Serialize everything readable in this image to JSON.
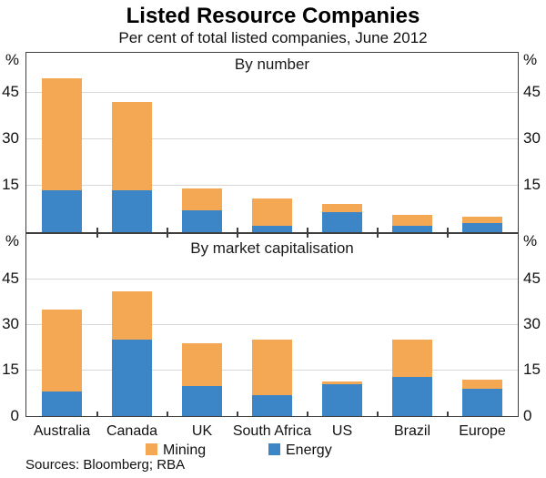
{
  "title": "Listed Resource Companies",
  "subtitle": "Per cent of total listed companies, June 2012",
  "sources": "Sources: Bloomberg; RBA",
  "colors": {
    "mining": "#F4A853",
    "energy": "#3C85C6",
    "gridline": "#D8D8D8",
    "frame": "#3F3F3F"
  },
  "legend": [
    {
      "label": "Mining",
      "color": "#F4A853"
    },
    {
      "label": "Energy",
      "color": "#3C85C6"
    }
  ],
  "chart_data": [
    {
      "type": "bar",
      "stacked": true,
      "panel_title": "By number",
      "unit": "%",
      "categories": [
        "Australia",
        "Canada",
        "UK",
        "South Africa",
        "US",
        "Brazil",
        "Europe"
      ],
      "yticks": [
        15,
        30,
        45
      ],
      "ylim": [
        0,
        57.5
      ],
      "grid": true,
      "legend_position": "bottom",
      "series": [
        {
          "name": "Energy",
          "color": "#3C85C6",
          "values": [
            13.5,
            13.5,
            7,
            2,
            6.5,
            2,
            3
          ]
        },
        {
          "name": "Mining",
          "color": "#F4A853",
          "values": [
            36,
            28.5,
            7,
            9,
            2.5,
            3.5,
            2
          ]
        }
      ]
    },
    {
      "type": "bar",
      "stacked": true,
      "panel_title": "By market capitalisation",
      "unit": "%",
      "categories": [
        "Australia",
        "Canada",
        "UK",
        "South Africa",
        "US",
        "Brazil",
        "Europe"
      ],
      "yticks": [
        0,
        15,
        30,
        45
      ],
      "ylim": [
        0,
        59.5
      ],
      "grid": true,
      "legend_position": "bottom",
      "series": [
        {
          "name": "Energy",
          "color": "#3C85C6",
          "values": [
            8,
            25,
            10,
            7,
            10.5,
            13,
            9
          ]
        },
        {
          "name": "Mining",
          "color": "#F4A853",
          "values": [
            27,
            16,
            14,
            18,
            1,
            12,
            3
          ]
        }
      ]
    }
  ]
}
